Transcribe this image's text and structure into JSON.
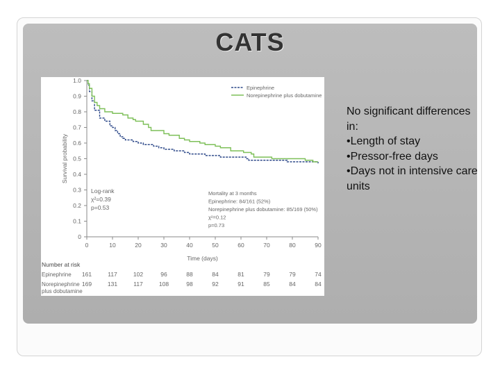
{
  "slide": {
    "title": "CATS",
    "bullets": [
      "No significant differences in:",
      "•Length of stay",
      "•Pressor-free days",
      "•Days not in intensive care units"
    ]
  },
  "chart_data": {
    "type": "line",
    "title": "",
    "xlabel": "Time (days)",
    "ylabel": "Survival probability",
    "xlim": [
      0,
      90
    ],
    "ylim": [
      0,
      1.0
    ],
    "xticks": [
      0,
      10,
      20,
      30,
      40,
      50,
      60,
      70,
      80,
      90
    ],
    "yticks": [
      0,
      0.1,
      0.2,
      0.3,
      0.4,
      0.5,
      0.6,
      0.7,
      0.8,
      0.9,
      1.0
    ],
    "grid": false,
    "legend_position": "top-right",
    "series": [
      {
        "name": "Epinephrine",
        "color": "#2f4a8a",
        "style": "dashed",
        "points": [
          [
            0,
            1.0
          ],
          [
            0.5,
            0.97
          ],
          [
            1,
            0.93
          ],
          [
            2,
            0.87
          ],
          [
            3,
            0.81
          ],
          [
            5,
            0.76
          ],
          [
            7,
            0.74
          ],
          [
            9,
            0.71
          ],
          [
            10,
            0.7
          ],
          [
            11,
            0.68
          ],
          [
            12,
            0.66
          ],
          [
            13,
            0.64
          ],
          [
            14,
            0.63
          ],
          [
            15,
            0.62
          ],
          [
            18,
            0.61
          ],
          [
            20,
            0.6
          ],
          [
            22,
            0.59
          ],
          [
            26,
            0.58
          ],
          [
            28,
            0.57
          ],
          [
            30,
            0.56
          ],
          [
            34,
            0.55
          ],
          [
            38,
            0.54
          ],
          [
            40,
            0.53
          ],
          [
            45,
            0.53
          ],
          [
            46,
            0.52
          ],
          [
            50,
            0.52
          ],
          [
            52,
            0.51
          ],
          [
            56,
            0.51
          ],
          [
            62,
            0.5
          ],
          [
            63,
            0.49
          ],
          [
            70,
            0.49
          ],
          [
            75,
            0.49
          ],
          [
            78,
            0.48
          ],
          [
            85,
            0.48
          ],
          [
            88,
            0.48
          ],
          [
            90,
            0.47
          ]
        ]
      },
      {
        "name": "Norepinephrine plus dobutamine",
        "color": "#7dbf58",
        "style": "solid",
        "points": [
          [
            0,
            1.0
          ],
          [
            0.5,
            0.98
          ],
          [
            1,
            0.95
          ],
          [
            2,
            0.9
          ],
          [
            3,
            0.86
          ],
          [
            4,
            0.84
          ],
          [
            5,
            0.82
          ],
          [
            7,
            0.8
          ],
          [
            10,
            0.79
          ],
          [
            14,
            0.78
          ],
          [
            16,
            0.76
          ],
          [
            18,
            0.75
          ],
          [
            19,
            0.74
          ],
          [
            22,
            0.72
          ],
          [
            24,
            0.7
          ],
          [
            25,
            0.68
          ],
          [
            30,
            0.66
          ],
          [
            32,
            0.65
          ],
          [
            36,
            0.63
          ],
          [
            38,
            0.62
          ],
          [
            40,
            0.61
          ],
          [
            44,
            0.6
          ],
          [
            46,
            0.59
          ],
          [
            50,
            0.58
          ],
          [
            52,
            0.57
          ],
          [
            56,
            0.55
          ],
          [
            61,
            0.54
          ],
          [
            64,
            0.53
          ],
          [
            65,
            0.51
          ],
          [
            68,
            0.51
          ],
          [
            70,
            0.51
          ],
          [
            72,
            0.5
          ],
          [
            76,
            0.5
          ],
          [
            80,
            0.5
          ],
          [
            85,
            0.49
          ],
          [
            88,
            0.48
          ],
          [
            90,
            0.48
          ]
        ]
      }
    ],
    "annotations": {
      "logrank": [
        "Log-rank",
        "χ²=0.39",
        "p=0.53"
      ],
      "mortality": [
        "Mortality at 3 months",
        "Epinephrine: 84/161 (52%)",
        "Norepinephrine plus dobutamine: 85/169 (50%)",
        "χ²=0.12",
        "p=0.73"
      ]
    },
    "risk_table": {
      "header": "Number at risk",
      "rows": [
        {
          "label": [
            "Epinephrine"
          ],
          "values": [
            161,
            117,
            102,
            96,
            88,
            84,
            81,
            79,
            79,
            74
          ]
        },
        {
          "label": [
            "Norepinephrine",
            "plus dobutamine"
          ],
          "values": [
            169,
            131,
            117,
            108,
            98,
            92,
            91,
            85,
            84,
            84
          ]
        }
      ]
    }
  }
}
